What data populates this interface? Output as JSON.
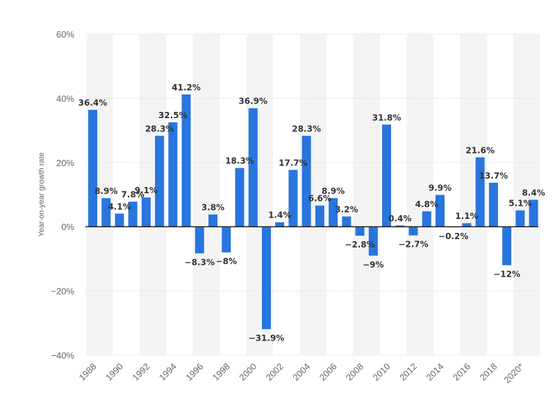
{
  "chart_data": {
    "type": "bar",
    "title": "",
    "xlabel": "",
    "ylabel": "Year-on-year growth rate",
    "ylim": [
      -40,
      60
    ],
    "yticks": [
      -40,
      -20,
      0,
      20,
      40,
      60
    ],
    "ytick_labels": [
      "−40%",
      "−20%",
      "0%",
      "20%",
      "40%",
      "60%"
    ],
    "grid": true,
    "bar_color": "#2876dd",
    "categories": [
      "1988",
      "1989",
      "1990",
      "1991",
      "1992",
      "1993",
      "1994",
      "1995",
      "1996",
      "1997",
      "1998",
      "1999",
      "2000",
      "2001",
      "2002",
      "2003",
      "2004",
      "2005",
      "2006",
      "2007",
      "2008",
      "2009",
      "2010",
      "2011",
      "2012",
      "2013",
      "2014",
      "2015",
      "2016",
      "2017",
      "2018",
      "2019",
      "2020*",
      "2021*"
    ],
    "x_tick_labels": [
      "1988",
      "1990",
      "1992",
      "1994",
      "1996",
      "1998",
      "2000",
      "2002",
      "2004",
      "2006",
      "2008",
      "2010",
      "2012",
      "2014",
      "2016",
      "2018",
      "2020*"
    ],
    "values": [
      36.4,
      8.9,
      4.1,
      7.8,
      9.1,
      28.3,
      32.5,
      41.2,
      -8.3,
      3.8,
      -8,
      18.3,
      36.9,
      -31.9,
      1.4,
      17.7,
      28.3,
      6.6,
      8.9,
      3.2,
      -2.8,
      -9,
      31.8,
      0.4,
      -2.7,
      4.8,
      9.9,
      -0.2,
      1.1,
      21.6,
      13.7,
      -12,
      5.1,
      8.4
    ],
    "value_labels": [
      "36.4%",
      "8.9%",
      "4.1%",
      "7.8%",
      "9.1%",
      "28.3%",
      "32.5%",
      "41.2%",
      "−8.3%",
      "3.8%",
      "−8%",
      "18.3%",
      "36.9%",
      "−31.9%",
      "1.4%",
      "17.7%",
      "28.3%",
      "6.6%",
      "8.9%",
      "3.2%",
      "−2.8%",
      "−9%",
      "31.8%",
      "0.4%",
      "−2.7%",
      "4.8%",
      "9.9%",
      "−0.2%",
      "1.1%",
      "21.6%",
      "13.7%",
      "−12%",
      "5.1%",
      "8.4%"
    ]
  }
}
